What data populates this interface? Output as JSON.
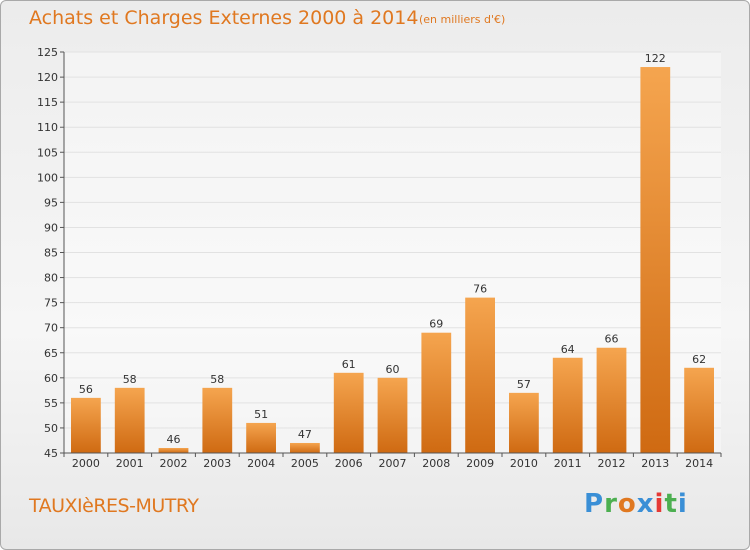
{
  "header": {
    "title": "Achats et Charges Externes 2000 à 2014",
    "subtitle": "(en milliers d'€)"
  },
  "footer": {
    "place": "TAUXIèRES-MUTRY",
    "logo": {
      "letters": [
        "P",
        "r",
        "o",
        "x",
        "i",
        "t",
        "i"
      ],
      "colors": [
        "#3a8fd6",
        "#4caf50",
        "#e07820",
        "#3a8fd6",
        "#e53935",
        "#4caf50",
        "#3a8fd6"
      ]
    }
  },
  "colors": {
    "bar_top": "#f5a54f",
    "bar_bottom": "#cf6a12",
    "text": "#e07820",
    "grid": "#e2e2e2"
  },
  "chart_data": {
    "type": "bar",
    "title": "Achats et Charges Externes 2000 à 2014",
    "subtitle": "(en milliers d'€)",
    "categories": [
      "2000",
      "2001",
      "2002",
      "2003",
      "2004",
      "2005",
      "2006",
      "2007",
      "2008",
      "2009",
      "2010",
      "2011",
      "2012",
      "2013",
      "2014"
    ],
    "values": [
      56,
      58,
      46,
      58,
      51,
      47,
      61,
      60,
      69,
      76,
      57,
      64,
      66,
      122,
      62
    ],
    "ylim": [
      45,
      125
    ],
    "yticks": [
      "45",
      "50",
      "55",
      "60",
      "65",
      "70",
      "75",
      "80",
      "85",
      "90",
      "95",
      "100",
      "105",
      "110",
      "115",
      "120",
      "125"
    ],
    "grid": true,
    "legend": "none",
    "xlabel": "",
    "ylabel": ""
  }
}
